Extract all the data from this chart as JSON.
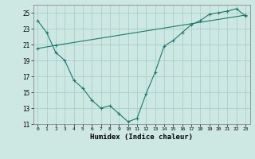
{
  "xlabel": "Humidex (Indice chaleur)",
  "background_color": "#cde8e2",
  "grid_color": "#aacfc8",
  "line_color": "#1a7a6e",
  "xlim": [
    -0.5,
    23.5
  ],
  "ylim": [
    11,
    26
  ],
  "xticks": [
    0,
    1,
    2,
    3,
    4,
    5,
    6,
    7,
    8,
    9,
    10,
    11,
    12,
    13,
    14,
    15,
    16,
    17,
    18,
    19,
    20,
    21,
    22,
    23
  ],
  "yticks": [
    11,
    13,
    15,
    17,
    19,
    21,
    23,
    25
  ],
  "curve_x": [
    0,
    1,
    2,
    3,
    4,
    5,
    6,
    7,
    8,
    9,
    10,
    11,
    12,
    13,
    14,
    15,
    16,
    17,
    18,
    19,
    20,
    21,
    22,
    23
  ],
  "curve_y": [
    24.0,
    22.5,
    20.0,
    19.0,
    16.5,
    15.5,
    14.0,
    13.0,
    13.3,
    12.3,
    11.3,
    11.7,
    14.8,
    17.5,
    20.8,
    21.5,
    22.5,
    23.5,
    24.0,
    24.8,
    25.0,
    25.2,
    25.5,
    24.6
  ],
  "trend_x": [
    0,
    2,
    23
  ],
  "trend_y": [
    20.5,
    20.9,
    24.7
  ]
}
